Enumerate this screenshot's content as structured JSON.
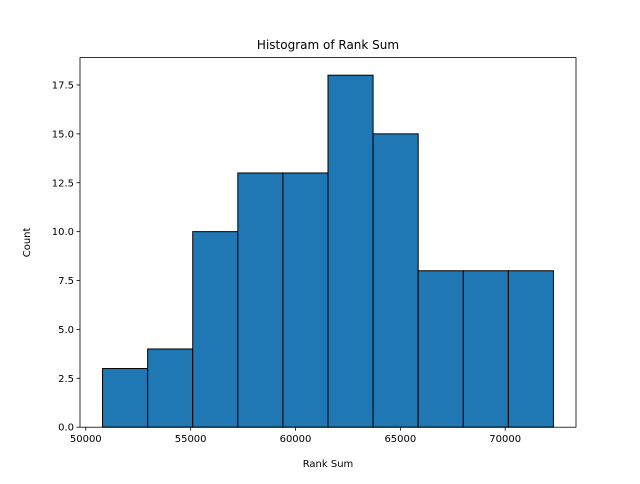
{
  "chart_data": {
    "type": "bar",
    "title": "Histogram of Rank Sum",
    "xlabel": "Rank Sum",
    "ylabel": "Count",
    "bin_edges": [
      50800,
      52950,
      55100,
      57250,
      59400,
      61550,
      63700,
      65850,
      68000,
      70150,
      72300
    ],
    "values": [
      3,
      4,
      10,
      13,
      13,
      18,
      15,
      8,
      8,
      8
    ],
    "xlim": [
      49725,
      73375
    ],
    "ylim": [
      0,
      18.9
    ],
    "xticks": [
      50000,
      55000,
      60000,
      65000,
      70000
    ],
    "xtick_labels": [
      "50000",
      "55000",
      "60000",
      "65000",
      "70000"
    ],
    "yticks": [
      0,
      2.5,
      5,
      7.5,
      10,
      12.5,
      15,
      17.5
    ],
    "ytick_labels": [
      "0.0",
      "2.5",
      "5.0",
      "7.5",
      "10.0",
      "12.5",
      "15.0",
      "17.5"
    ],
    "grid": false,
    "bar_color": "#1f77b4",
    "edge_color": "#000000"
  }
}
